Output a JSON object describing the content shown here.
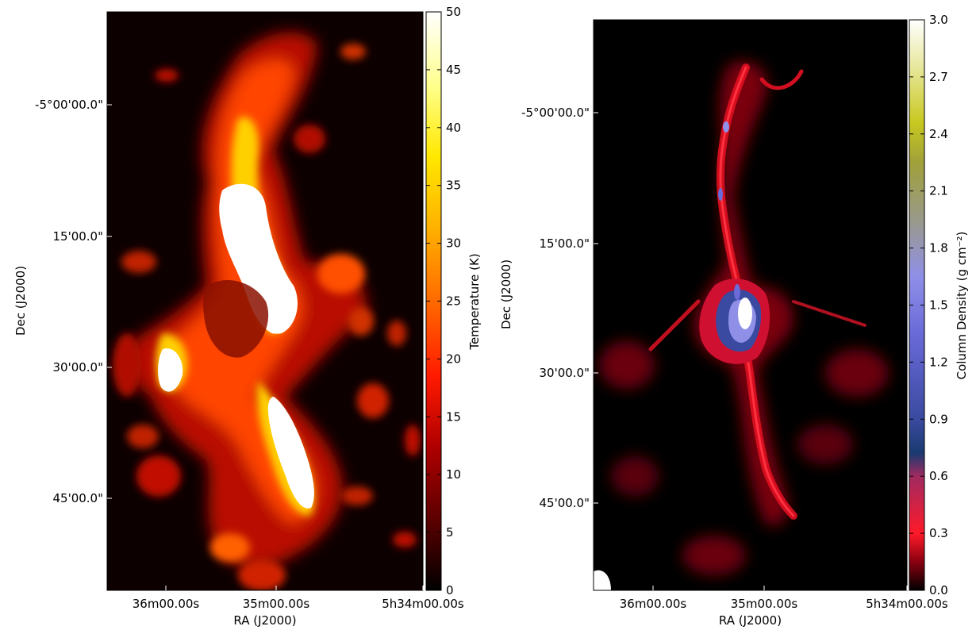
{
  "chart_data": [
    {
      "type": "heatmap",
      "title": "",
      "xlabel": "RA (J2000)",
      "ylabel": "Dec (J2000)",
      "x_ticks": [
        "36m00.00s",
        "35m00.00s",
        "5h34m00.00s"
      ],
      "y_ticks": [
        "-5°00'00.0\"",
        "15'00.0\"",
        "30'00.0\"",
        "45'00.0\""
      ],
      "colorbar": {
        "label": "Temperature (K)",
        "min": 0,
        "max": 50,
        "ticks": [
          "0",
          "5",
          "10",
          "15",
          "20",
          "25",
          "30",
          "35",
          "40",
          "45",
          "50"
        ],
        "colormap": [
          "#000000",
          "#5a0000",
          "#b00000",
          "#ff1a00",
          "#ff6a00",
          "#ffae00",
          "#ffe800",
          "#ffff8a",
          "#ffffff"
        ]
      }
    },
    {
      "type": "heatmap",
      "title": "",
      "xlabel": "RA (J2000)",
      "ylabel": "Dec (J2000)",
      "x_ticks": [
        "36m00.00s",
        "35m00.00s",
        "5h34m00.00s"
      ],
      "y_ticks": [
        "-5°00'00.0\"",
        "15'00.0\"",
        "30'00.0\"",
        "45'00.0\""
      ],
      "colorbar": {
        "label": "Column Density (g cm⁻²)",
        "min": 0.0,
        "max": 3.0,
        "ticks": [
          "0.0",
          "0.3",
          "0.6",
          "0.9",
          "1.2",
          "1.5",
          "1.8",
          "2.1",
          "2.4",
          "2.7",
          "3.0"
        ],
        "colormap": [
          "#000000",
          "#8a0010",
          "#ff1a2a",
          "#a02a60",
          "#1a3a70",
          "#3a4aa0",
          "#6a6ad8",
          "#8f8fe8",
          "#9a9a8a",
          "#a0a03a",
          "#c8c820",
          "#e8e8a0",
          "#ffffff"
        ]
      }
    }
  ]
}
